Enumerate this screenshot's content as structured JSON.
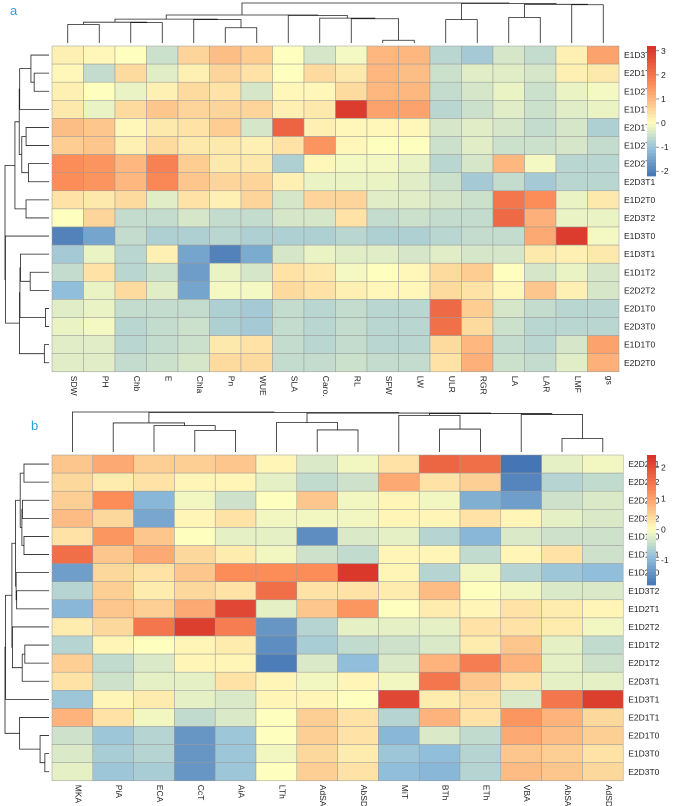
{
  "colors": {
    "low": "#4575b4",
    "mid": "#fefebf",
    "high": "#d73027",
    "grid": "#9a9a9a",
    "tree": "#222222",
    "panel_label": "#29a3d9"
  },
  "chart_data": [
    {
      "type": "heatmap",
      "panel_label": "a",
      "title": "",
      "columns": [
        "SDW",
        "PH",
        "Chb",
        "E",
        "Chla",
        "Pn",
        "WUE",
        "SLA",
        "Caro.",
        "RL",
        "SFW",
        "LW",
        "ULR",
        "RGR",
        "LA",
        "LAR",
        "LMF",
        "gs"
      ],
      "rows": [
        "E1D3T2",
        "E2D1T1",
        "E1D2T1",
        "E1D1T1",
        "E2D1T2",
        "E1D2T2",
        "E2D2T1",
        "E2D3T1",
        "E1D2T0",
        "E2D3T2",
        "E1D3T0",
        "E1D3T1",
        "E1D1T2",
        "E2D2T2",
        "E2D1T0",
        "E2D3T0",
        "E1D1T0",
        "E2D2T0"
      ],
      "values": [
        [
          0.2,
          0.1,
          0.0,
          -0.5,
          0.6,
          0.9,
          0.7,
          0.0,
          -0.4,
          -0.1,
          1.0,
          1.0,
          -0.7,
          -0.9,
          -0.4,
          -0.6,
          0.2,
          1.3
        ],
        [
          0.1,
          -0.6,
          0.5,
          -0.3,
          0.2,
          0.6,
          0.4,
          0.0,
          0.5,
          0.3,
          1.0,
          0.9,
          -0.5,
          -0.3,
          -0.3,
          -0.4,
          0.2,
          0.3
        ],
        [
          0.2,
          0.0,
          -0.2,
          0.2,
          0.5,
          0.4,
          -0.4,
          0.1,
          0.1,
          0.5,
          1.0,
          1.0,
          -0.6,
          -0.4,
          -0.2,
          -0.5,
          -0.2,
          -0.1
        ],
        [
          0.3,
          -0.2,
          0.5,
          0.8,
          0.6,
          0.6,
          0.6,
          0.2,
          0.3,
          3.0,
          1.3,
          1.3,
          -0.7,
          -0.5,
          -0.3,
          -0.5,
          -0.3,
          -0.2
        ],
        [
          0.9,
          0.8,
          0.1,
          0.3,
          0.4,
          0.7,
          -0.4,
          2.3,
          0.2,
          0.1,
          0.1,
          0.1,
          -0.4,
          -0.3,
          -0.4,
          -0.6,
          -0.4,
          -0.8
        ],
        [
          0.7,
          0.8,
          0.2,
          0.5,
          0.3,
          0.3,
          0.2,
          0.4,
          1.5,
          0.1,
          0.0,
          0.0,
          -0.5,
          -0.3,
          -0.5,
          -0.5,
          -0.4,
          -0.6
        ],
        [
          1.6,
          1.5,
          1.0,
          1.8,
          0.7,
          0.3,
          0.3,
          -0.8,
          0.1,
          -0.1,
          -0.1,
          -0.2,
          -0.7,
          -0.4,
          1.0,
          -0.1,
          -0.7,
          -0.7
        ],
        [
          1.6,
          1.5,
          1.0,
          1.7,
          0.8,
          0.6,
          0.6,
          0.2,
          -0.2,
          -0.2,
          -0.2,
          -0.3,
          -0.5,
          -0.9,
          -0.6,
          -0.9,
          -0.7,
          -0.7
        ],
        [
          0.4,
          0.3,
          0.5,
          -0.3,
          0.4,
          0.2,
          0.6,
          -0.4,
          0.6,
          0.6,
          -0.3,
          -0.3,
          -0.4,
          -0.5,
          2.0,
          1.6,
          -0.2,
          0.3
        ],
        [
          0.0,
          0.6,
          -0.6,
          -0.6,
          -0.4,
          -0.6,
          -0.6,
          -0.4,
          -0.4,
          0.4,
          -0.6,
          -0.5,
          -0.6,
          -0.6,
          2.2,
          1.1,
          -0.2,
          -0.2
        ],
        [
          -2.0,
          -1.5,
          -0.6,
          -0.8,
          -0.8,
          -0.7,
          -0.8,
          -0.8,
          -0.8,
          -0.7,
          -0.8,
          -0.8,
          -0.7,
          -0.6,
          -0.6,
          1.2,
          3.0,
          -0.1
        ],
        [
          -0.9,
          -0.2,
          -0.7,
          0.2,
          -1.5,
          -2.0,
          -1.4,
          -0.4,
          -0.2,
          -0.3,
          -0.3,
          -0.4,
          -0.3,
          -0.4,
          -0.4,
          0.3,
          0.2,
          0.3
        ],
        [
          -0.6,
          0.4,
          -0.7,
          -0.5,
          -1.6,
          -0.2,
          -0.4,
          0.4,
          0.3,
          -0.1,
          0.0,
          0.1,
          0.5,
          0.7,
          0.0,
          -0.4,
          -0.2,
          -0.4
        ],
        [
          -1.1,
          -0.2,
          0.5,
          -0.3,
          -1.5,
          -0.1,
          -0.1,
          0.5,
          0.4,
          0.2,
          0.1,
          0.1,
          0.5,
          0.4,
          0.1,
          0.8,
          0.2,
          -0.4
        ],
        [
          -0.3,
          -0.2,
          -0.6,
          -0.6,
          -0.6,
          -0.8,
          -0.9,
          -0.6,
          -0.7,
          -0.6,
          -0.7,
          -0.7,
          2.2,
          0.7,
          -0.4,
          -0.6,
          -0.7,
          -0.7
        ],
        [
          -0.2,
          -0.1,
          -0.7,
          -0.6,
          -0.5,
          -0.8,
          -0.9,
          -0.6,
          -0.7,
          -0.6,
          -0.7,
          -0.7,
          2.1,
          0.5,
          -0.5,
          -0.7,
          -0.7,
          -0.7
        ],
        [
          -0.3,
          -0.3,
          -0.7,
          -0.6,
          -0.5,
          0.3,
          0.4,
          -0.6,
          -0.7,
          -0.6,
          -0.7,
          -0.7,
          0.5,
          1.0,
          -0.6,
          -0.7,
          -0.4,
          1.3
        ],
        [
          -0.3,
          -0.3,
          -0.6,
          -0.5,
          -0.4,
          0.5,
          0.5,
          -0.6,
          -0.6,
          -0.5,
          -0.6,
          -0.6,
          0.4,
          1.1,
          -0.5,
          -0.6,
          -0.3,
          1.1
        ]
      ],
      "legend_ticks": [
        3,
        2,
        1,
        0,
        -1,
        -2
      ],
      "color_range": [
        -2.2,
        3.2
      ]
    },
    {
      "type": "heatmap",
      "panel_label": "b",
      "title": "",
      "columns": [
        "MKA",
        "PiA",
        "ECA",
        "CcT",
        "AiA",
        "LTh",
        "AdSA",
        "AbSD",
        "MiT",
        "BTh",
        "ETh",
        "VBA",
        "AbSA",
        "AdSD"
      ],
      "rows": [
        "E2D2T1",
        "E2D2T2",
        "E2D2T0",
        "E2D3T2",
        "E1D1T0",
        "E1D1T1",
        "E1D2T0",
        "E1D3T2",
        "E1D2T1",
        "E1D2T2",
        "E1D1T2",
        "E2D1T2",
        "E2D3T1",
        "E1D3T1",
        "E2D1T1",
        "E2D1T0",
        "E1D3T0",
        "E2D3T0"
      ],
      "values": [
        [
          0.6,
          0.9,
          0.5,
          0.5,
          0.6,
          0.1,
          -0.3,
          -0.1,
          0.3,
          1.7,
          1.6,
          -1.8,
          -0.2,
          -0.1
        ],
        [
          0.4,
          0.2,
          0.3,
          0.1,
          0.1,
          -0.2,
          -0.5,
          -0.4,
          0.9,
          0.3,
          0.5,
          -1.6,
          -0.6,
          -0.5
        ],
        [
          0.5,
          1.2,
          -1.0,
          -0.1,
          -0.4,
          0.0,
          0.6,
          -0.1,
          0.1,
          -0.1,
          -1.1,
          -1.3,
          -0.4,
          -0.3
        ],
        [
          0.7,
          0.4,
          -1.2,
          0.1,
          0.3,
          -0.1,
          -0.1,
          -0.1,
          0.1,
          0.1,
          0.3,
          0.1,
          -0.2,
          -0.3
        ],
        [
          0.3,
          1.1,
          0.6,
          0.0,
          -0.2,
          -0.2,
          -1.5,
          -0.3,
          -0.2,
          -0.6,
          -1.0,
          -0.3,
          -0.4,
          -0.4
        ],
        [
          1.6,
          0.6,
          0.9,
          0.4,
          0.2,
          -0.1,
          -0.4,
          -0.5,
          0.1,
          0.1,
          -0.5,
          0.1,
          0.3,
          -0.4
        ],
        [
          -1.3,
          0.4,
          0.3,
          0.6,
          1.2,
          1.2,
          1.2,
          2.3,
          0.1,
          -0.6,
          -0.1,
          -0.6,
          -0.8,
          -0.9
        ],
        [
          -0.6,
          0.5,
          0.2,
          0.4,
          0.3,
          1.6,
          0.3,
          0.3,
          0.2,
          0.7,
          0.0,
          -0.1,
          -0.3,
          -0.3
        ],
        [
          -1.0,
          0.6,
          0.5,
          0.9,
          2.1,
          -0.2,
          0.6,
          1.1,
          0.0,
          0.2,
          0.1,
          0.3,
          0.2,
          0.1
        ],
        [
          0.2,
          0.4,
          1.5,
          2.2,
          1.4,
          -1.4,
          -0.6,
          -0.2,
          -0.2,
          -0.2,
          0.3,
          0.3,
          0.2,
          -0.1
        ],
        [
          -0.6,
          0.1,
          0.0,
          0.1,
          0.2,
          -1.5,
          -0.7,
          -0.5,
          -0.4,
          -0.3,
          0.2,
          0.6,
          -0.2,
          -0.5
        ],
        [
          0.5,
          -0.5,
          -0.3,
          0.1,
          0.1,
          -1.7,
          -0.3,
          -0.9,
          -0.3,
          0.8,
          1.4,
          0.8,
          -0.2,
          -0.4
        ],
        [
          0.3,
          -0.4,
          -0.2,
          -0.2,
          0.3,
          0.1,
          -0.1,
          0.1,
          -0.1,
          1.5,
          0.6,
          0.3,
          -0.2,
          -0.2
        ],
        [
          -0.8,
          0.1,
          0.2,
          -0.2,
          -0.3,
          0.1,
          0.1,
          0.0,
          2.1,
          0.2,
          0.3,
          -0.3,
          1.5,
          2.2
        ],
        [
          0.8,
          0.3,
          -0.1,
          -0.5,
          -0.3,
          0.0,
          0.5,
          0.3,
          -0.6,
          0.8,
          0.3,
          1.1,
          0.8,
          0.4
        ],
        [
          -0.4,
          -0.8,
          -0.6,
          -1.4,
          -0.8,
          0.0,
          0.5,
          0.3,
          -1.0,
          -0.3,
          -0.5,
          0.9,
          0.7,
          0.5
        ],
        [
          -0.3,
          -0.7,
          -0.6,
          -1.4,
          -0.8,
          -0.1,
          0.4,
          0.2,
          -0.8,
          -0.9,
          -0.6,
          0.6,
          0.5,
          0.3
        ],
        [
          -0.2,
          -0.8,
          -0.7,
          -1.4,
          -0.8,
          0.0,
          0.5,
          0.3,
          -0.9,
          -1.0,
          -0.6,
          0.7,
          0.6,
          0.4
        ]
      ],
      "legend_ticks": [
        2,
        1,
        0,
        -1
      ],
      "color_range": [
        -1.8,
        2.4
      ]
    }
  ]
}
